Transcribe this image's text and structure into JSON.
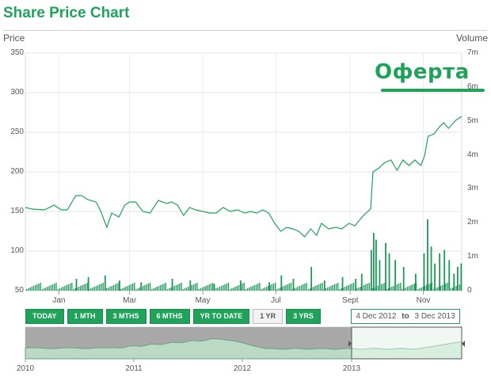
{
  "title": "Share Price Chart",
  "promo_text": "Оферта",
  "colors": {
    "accent": "#1fa35a",
    "line": "#1fa35a",
    "volume": "#1a9a55"
  },
  "range_buttons": [
    {
      "label": "TODAY",
      "active": false
    },
    {
      "label": "1 MTH",
      "active": false
    },
    {
      "label": "3 MTHS",
      "active": false
    },
    {
      "label": "6 MTHS",
      "active": false
    },
    {
      "label": "YR TO DATE",
      "active": false
    },
    {
      "label": "1 YR",
      "active": true
    },
    {
      "label": "3 YRS",
      "active": false
    }
  ],
  "date_range": {
    "from": "4 Dec 2012",
    "sep": "to",
    "to": "3 Dec 2013"
  },
  "navigator": {
    "ticks": [
      "2010",
      "2011",
      "2012",
      "2013"
    ]
  },
  "chart_data": {
    "type": "line",
    "left_axis_label": "Price",
    "right_axis_label": "Volume",
    "price_ylim": [
      50,
      350
    ],
    "price_ticks": [
      "50",
      "100",
      "150",
      "200",
      "250",
      "300",
      "350"
    ],
    "volume_ylim": [
      0,
      7
    ],
    "volume_ticks": [
      "0",
      "1m",
      "2m",
      "3m",
      "4m",
      "5m",
      "6m",
      "7m"
    ],
    "x_ticks": [
      "Jan",
      "Mar",
      "May",
      "Jul",
      "Sept",
      "Nov"
    ],
    "grid": true,
    "series": [
      {
        "type": "line",
        "points": [
          [
            "2012-12-04",
            155
          ],
          [
            "2012-12-10",
            153
          ],
          [
            "2012-12-20",
            152
          ],
          [
            "2012-12-28",
            158
          ],
          [
            "2013-01-03",
            152
          ],
          [
            "2013-01-08",
            152
          ],
          [
            "2013-01-15",
            170
          ],
          [
            "2013-01-20",
            170
          ],
          [
            "2013-01-25",
            165
          ],
          [
            "2013-02-01",
            162
          ],
          [
            "2013-02-05",
            150
          ],
          [
            "2013-02-10",
            130
          ],
          [
            "2013-02-14",
            148
          ],
          [
            "2013-02-20",
            143
          ],
          [
            "2013-02-25",
            158
          ],
          [
            "2013-03-01",
            162
          ],
          [
            "2013-03-06",
            162
          ],
          [
            "2013-03-12",
            150
          ],
          [
            "2013-03-18",
            148
          ],
          [
            "2013-03-25",
            164
          ],
          [
            "2013-04-01",
            160
          ],
          [
            "2013-04-05",
            162
          ],
          [
            "2013-04-10",
            158
          ],
          [
            "2013-04-15",
            145
          ],
          [
            "2013-04-20",
            155
          ],
          [
            "2013-04-25",
            152
          ],
          [
            "2013-05-01",
            150
          ],
          [
            "2013-05-07",
            148
          ],
          [
            "2013-05-12",
            148
          ],
          [
            "2013-05-18",
            155
          ],
          [
            "2013-05-24",
            150
          ],
          [
            "2013-05-30",
            152
          ],
          [
            "2013-06-05",
            148
          ],
          [
            "2013-06-10",
            150
          ],
          [
            "2013-06-15",
            148
          ],
          [
            "2013-06-20",
            152
          ],
          [
            "2013-06-25",
            148
          ],
          [
            "2013-06-30",
            135
          ],
          [
            "2013-07-05",
            125
          ],
          [
            "2013-07-10",
            130
          ],
          [
            "2013-07-15",
            128
          ],
          [
            "2013-07-20",
            125
          ],
          [
            "2013-07-25",
            118
          ],
          [
            "2013-07-30",
            128
          ],
          [
            "2013-08-04",
            120
          ],
          [
            "2013-08-08",
            135
          ],
          [
            "2013-08-14",
            128
          ],
          [
            "2013-08-20",
            130
          ],
          [
            "2013-08-25",
            128
          ],
          [
            "2013-08-31",
            135
          ],
          [
            "2013-09-05",
            132
          ],
          [
            "2013-09-12",
            145
          ],
          [
            "2013-09-18",
            153
          ],
          [
            "2013-09-20",
            200
          ],
          [
            "2013-09-25",
            205
          ],
          [
            "2013-09-30",
            212
          ],
          [
            "2013-10-05",
            215
          ],
          [
            "2013-10-10",
            202
          ],
          [
            "2013-10-15",
            215
          ],
          [
            "2013-10-20",
            208
          ],
          [
            "2013-10-25",
            215
          ],
          [
            "2013-10-30",
            208
          ],
          [
            "2013-11-02",
            220
          ],
          [
            "2013-11-05",
            245
          ],
          [
            "2013-11-10",
            248
          ],
          [
            "2013-11-15",
            258
          ],
          [
            "2013-11-18",
            262
          ],
          [
            "2013-11-22",
            255
          ],
          [
            "2013-11-25",
            260
          ],
          [
            "2013-11-28",
            265
          ],
          [
            "2013-12-03",
            270
          ]
        ]
      }
    ],
    "volume_series": [
      [
        "2013-01-15",
        0.35
      ],
      [
        "2013-01-25",
        0.4
      ],
      [
        "2013-02-08",
        0.45
      ],
      [
        "2013-02-20",
        0.3
      ],
      [
        "2013-03-10",
        0.25
      ],
      [
        "2013-04-05",
        0.35
      ],
      [
        "2013-04-20",
        0.3
      ],
      [
        "2013-05-10",
        0.2
      ],
      [
        "2013-06-01",
        0.3
      ],
      [
        "2013-06-25",
        0.25
      ],
      [
        "2013-07-05",
        0.45
      ],
      [
        "2013-07-15",
        0.35
      ],
      [
        "2013-07-30",
        0.7
      ],
      [
        "2013-08-10",
        0.3
      ],
      [
        "2013-08-25",
        0.4
      ],
      [
        "2013-09-05",
        0.35
      ],
      [
        "2013-09-10",
        0.5
      ],
      [
        "2013-09-18",
        1.2
      ],
      [
        "2013-09-20",
        1.7
      ],
      [
        "2013-09-22",
        1.5
      ],
      [
        "2013-09-25",
        0.9
      ],
      [
        "2013-09-30",
        1.4
      ],
      [
        "2013-10-03",
        1.1
      ],
      [
        "2013-10-08",
        0.9
      ],
      [
        "2013-10-15",
        0.7
      ],
      [
        "2013-10-25",
        0.5
      ],
      [
        "2013-11-01",
        1.1
      ],
      [
        "2013-11-04",
        2.1
      ],
      [
        "2013-11-07",
        1.3
      ],
      [
        "2013-11-10",
        0.8
      ],
      [
        "2013-11-14",
        1.1
      ],
      [
        "2013-11-18",
        1.2
      ],
      [
        "2013-11-22",
        0.9
      ],
      [
        "2013-11-26",
        0.5
      ],
      [
        "2013-11-29",
        0.7
      ],
      [
        "2013-12-02",
        0.8
      ]
    ]
  }
}
